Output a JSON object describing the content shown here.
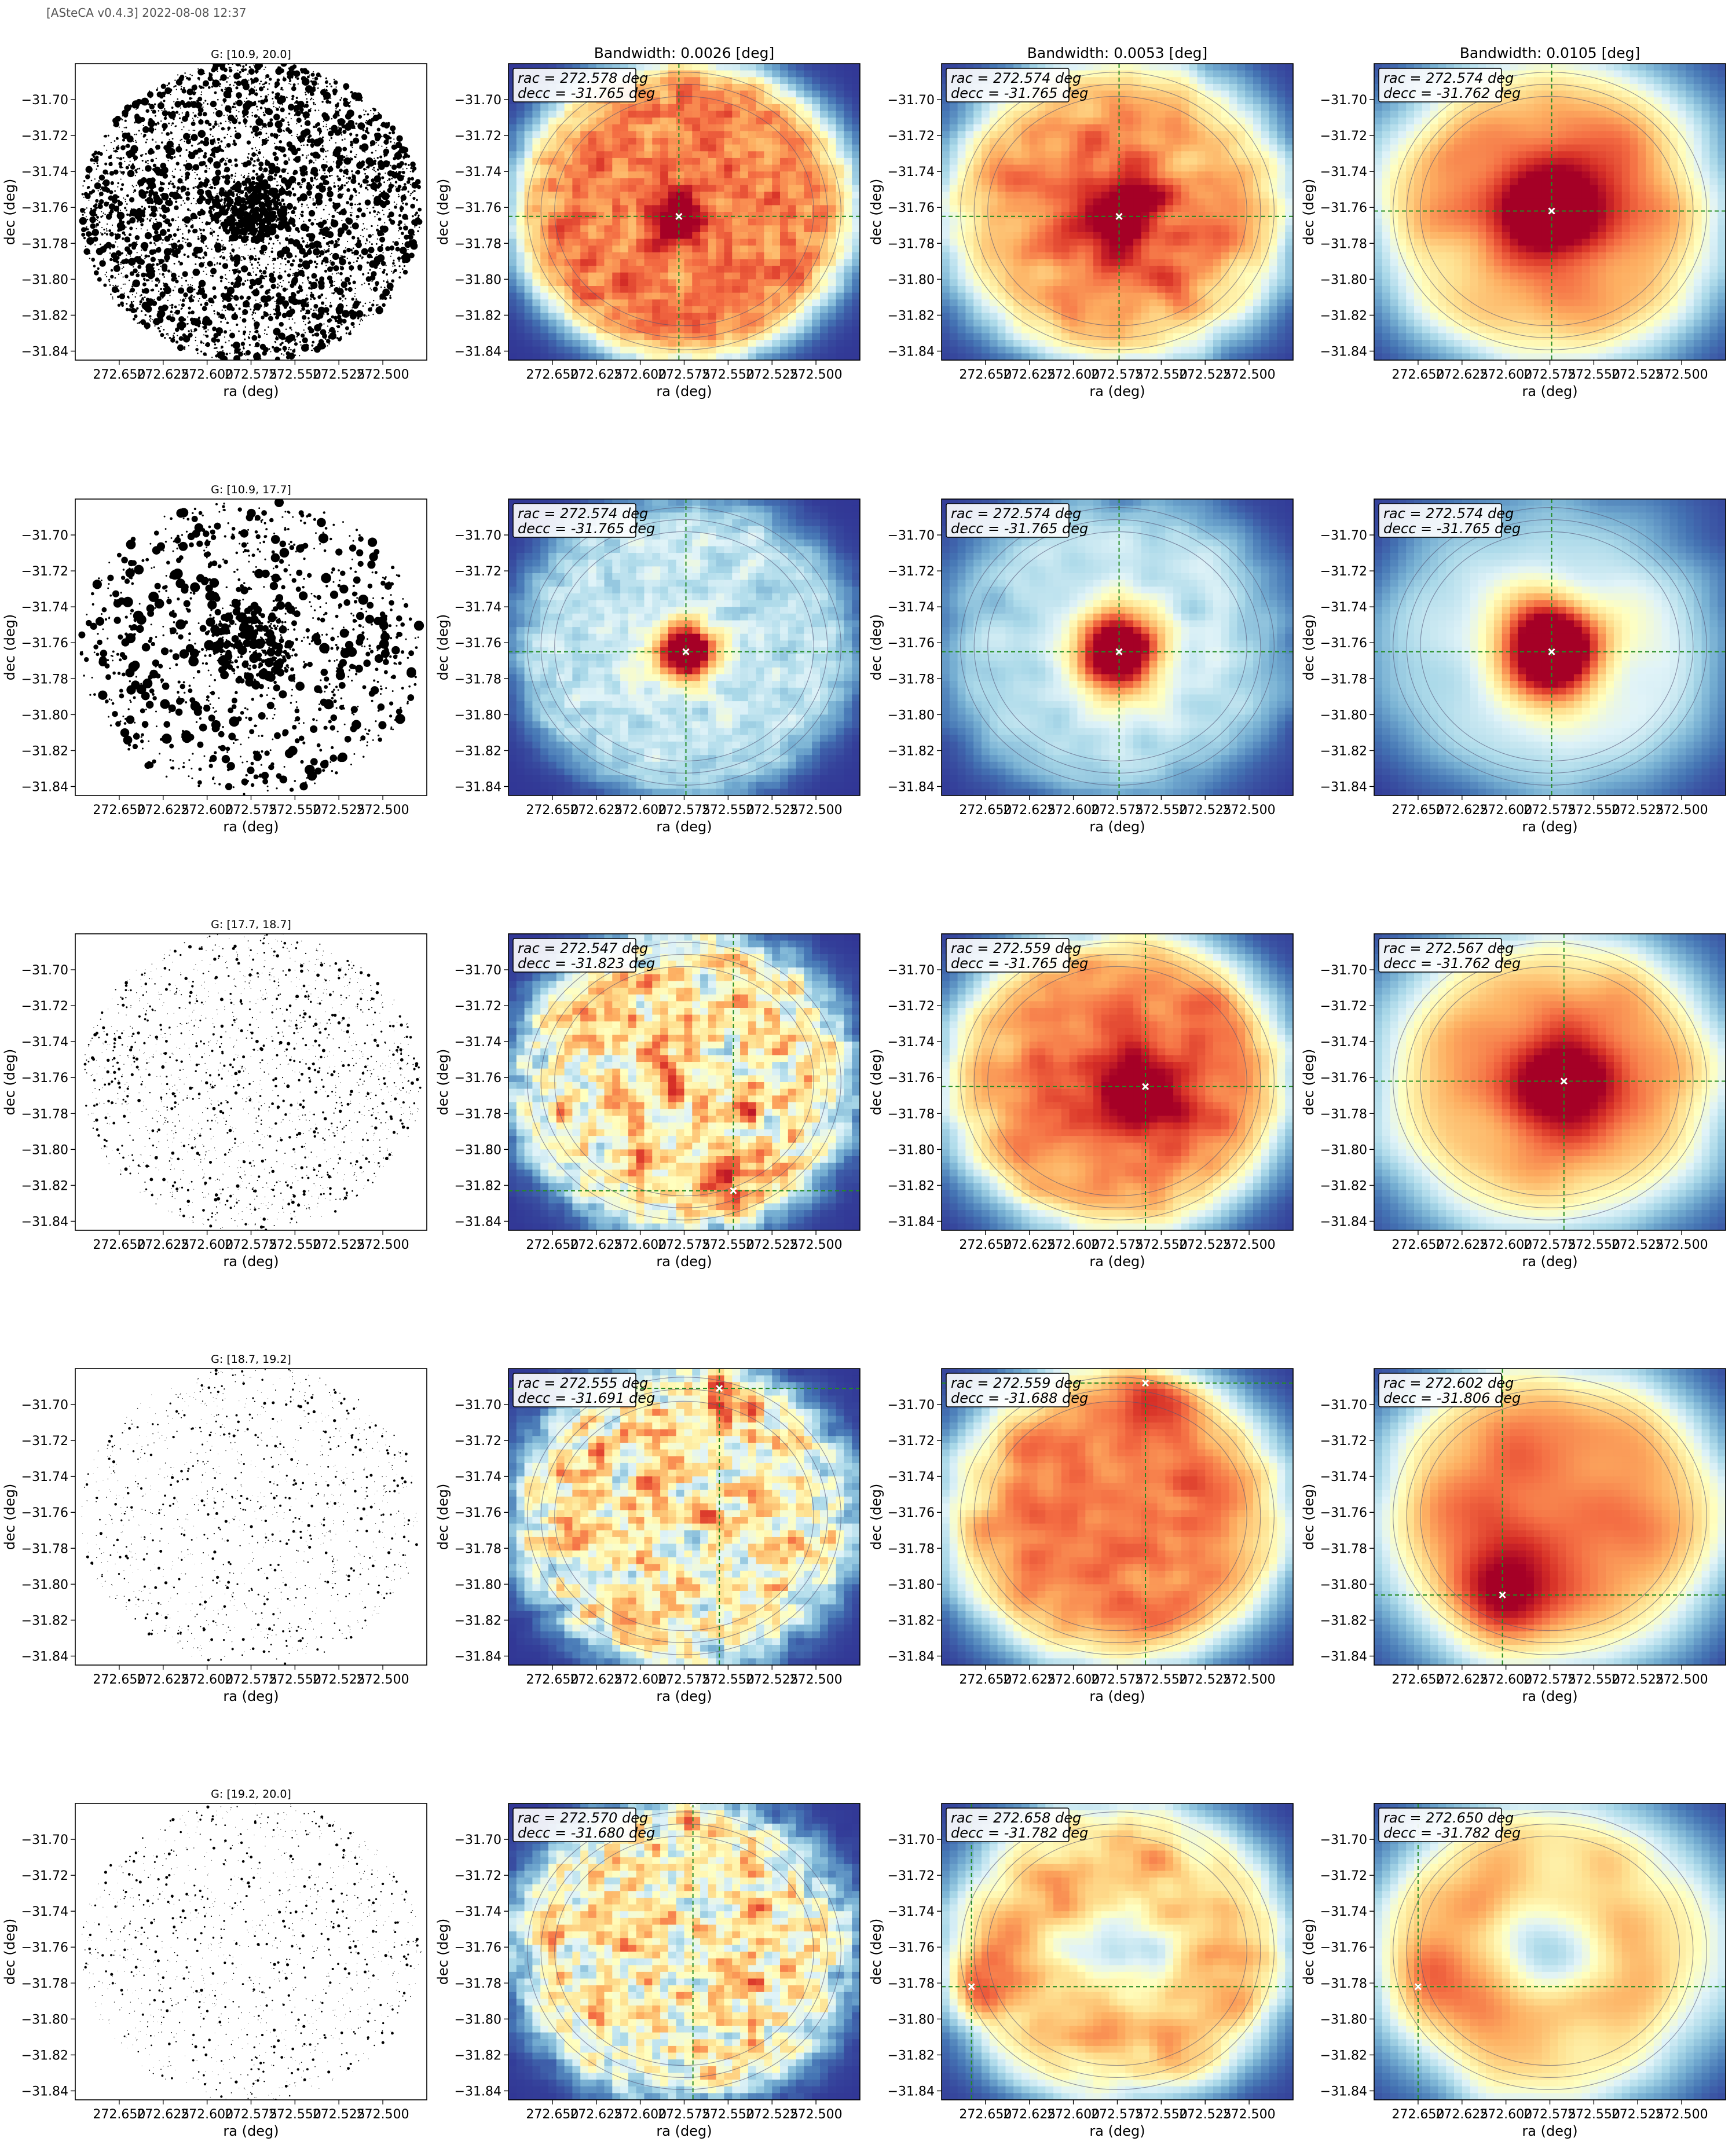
{
  "header": {
    "text": "[ASteCA v0.4.3] 2022-08-08 12:37"
  },
  "colors": {
    "colormap": [
      "#313695",
      "#4575b4",
      "#74add1",
      "#abd9e9",
      "#e0f3f8",
      "#ffffbf",
      "#fee090",
      "#fdae61",
      "#f46d43",
      "#d73027",
      "#a50026"
    ],
    "crosshair": "#228b22",
    "contour": "#555577",
    "star": "#000000",
    "center_marker": "#ffffff"
  },
  "chart_data": {
    "type": "heatmap",
    "shared_axes": {
      "xlabel": "ra (deg)",
      "ylabel": "dec (deg)",
      "xticks": [
        "272.650",
        "272.625",
        "272.600",
        "272.575",
        "272.550",
        "272.525",
        "272.500"
      ],
      "xtick_values": [
        272.65,
        272.625,
        272.6,
        272.575,
        272.55,
        272.525,
        272.5
      ],
      "yticks": [
        "−31.70",
        "−31.72",
        "−31.74",
        "−31.76",
        "−31.78",
        "−31.80",
        "−31.82",
        "−31.84"
      ],
      "ytick_values": [
        -31.7,
        -31.72,
        -31.74,
        -31.76,
        -31.78,
        -31.8,
        -31.82,
        -31.84
      ],
      "xlim": [
        272.675,
        272.475
      ],
      "ylim": [
        -31.845,
        -31.68
      ],
      "center": [
        272.575,
        -31.762
      ],
      "radius_ra": 0.097,
      "radius_dec": 0.084
    },
    "bandwidth_titles": [
      "Bandwidth: 0.0026 [deg]",
      "Bandwidth: 0.0053 [deg]",
      "Bandwidth: 0.0105 [deg]"
    ],
    "bandwidths": [
      0.0026,
      0.0053,
      0.0105
    ],
    "rows": [
      {
        "scatter_title": "G: [10.9, 20.0]",
        "n_stars": 4500,
        "size_scale": 1.8,
        "panels": [
          {
            "ra_c": "272.578",
            "dec_c": "-31.765",
            "profile": "warm",
            "peak": 0.4
          },
          {
            "ra_c": "272.574",
            "dec_c": "-31.765",
            "profile": "warm",
            "peak": 0.45
          },
          {
            "ra_c": "272.574",
            "dec_c": "-31.762",
            "profile": "warm",
            "peak": 0.45
          }
        ]
      },
      {
        "scatter_title": "G: [10.9, 17.7]",
        "n_stars": 1400,
        "size_scale": 2.4,
        "panels": [
          {
            "ra_c": "272.574",
            "dec_c": "-31.765",
            "profile": "cool",
            "peak": 1.0
          },
          {
            "ra_c": "272.574",
            "dec_c": "-31.765",
            "profile": "cool",
            "peak": 1.0
          },
          {
            "ra_c": "272.574",
            "dec_c": "-31.765",
            "profile": "cool",
            "peak": 1.0
          }
        ]
      },
      {
        "scatter_title": "G: [17.7, 18.7]",
        "n_stars": 1800,
        "size_scale": 0.8,
        "panels": [
          {
            "ra_c": "272.547",
            "dec_c": "-31.823",
            "profile": "mixed",
            "peak": 0.3
          },
          {
            "ra_c": "272.559",
            "dec_c": "-31.765",
            "profile": "warm",
            "peak": 0.35
          },
          {
            "ra_c": "272.567",
            "dec_c": "-31.762",
            "profile": "warm",
            "peak": 0.4
          }
        ]
      },
      {
        "scatter_title": "G: [18.7, 19.2]",
        "n_stars": 1300,
        "size_scale": 0.7,
        "panels": [
          {
            "ra_c": "272.555",
            "dec_c": "-31.691",
            "profile": "mixed",
            "peak": 0.3
          },
          {
            "ra_c": "272.559",
            "dec_c": "-31.688",
            "profile": "warm",
            "peak": 0.3
          },
          {
            "ra_c": "272.602",
            "dec_c": "-31.806",
            "profile": "warm",
            "peak": 0.3
          }
        ]
      },
      {
        "scatter_title": "G: [19.2, 20.0]",
        "n_stars": 1300,
        "size_scale": 0.7,
        "panels": [
          {
            "ra_c": "272.570",
            "dec_c": "-31.680",
            "profile": "mixed",
            "peak": 0.3
          },
          {
            "ra_c": "272.658",
            "dec_c": "-31.782",
            "profile": "hole",
            "peak": 0.3
          },
          {
            "ra_c": "272.650",
            "dec_c": "-31.782",
            "profile": "hole",
            "peak": 0.3
          }
        ]
      }
    ]
  }
}
